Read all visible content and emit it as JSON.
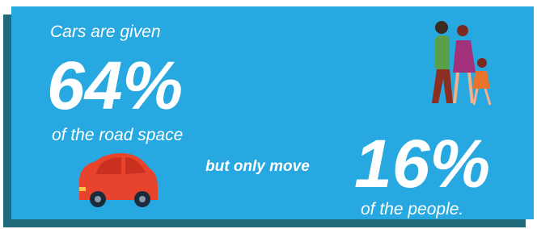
{
  "intro": "Cars are given",
  "road_share": "64%",
  "road_caption": "of the road space",
  "connector": "but only move",
  "people_share": "16%",
  "people_caption": "of the people."
}
